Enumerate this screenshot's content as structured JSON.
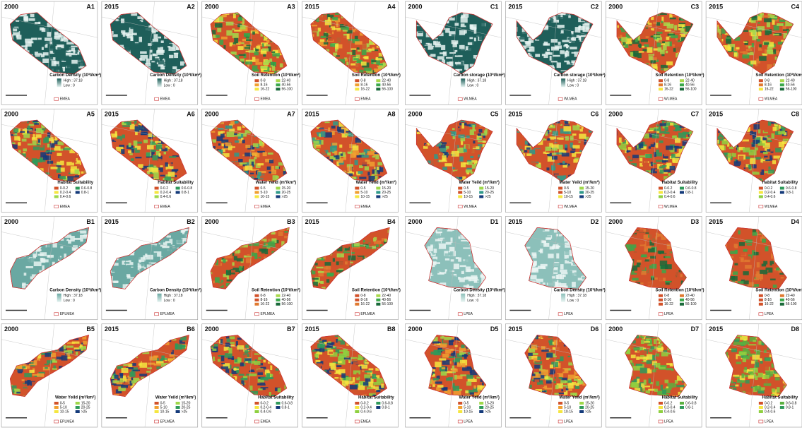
{
  "groups": [
    {
      "region": "EMEA",
      "legend": {
        "title": "Carbon Density (10³t/km²)",
        "high": "High : 37.18",
        "low": "Low : 0",
        "colors": [
          "#1f5f5a",
          "#e6f3f1"
        ]
      },
      "panels": [
        {
          "label": "A1",
          "year": "2000"
        },
        {
          "label": "A2",
          "year": "2015"
        }
      ]
    },
    {
      "region": "EMEA",
      "legend": {
        "title": "Soil Retention (10³t/km²)",
        "items": [
          "0-8",
          "8-16",
          "16-22",
          "22-40",
          "40-56",
          "56-100"
        ],
        "colors": [
          "#d2522a",
          "#f0a030",
          "#f5e640",
          "#a8d84a",
          "#3aa84a",
          "#1a6a3a"
        ]
      },
      "panels": [
        {
          "label": "A3",
          "year": "2000"
        },
        {
          "label": "A4",
          "year": "2015"
        }
      ]
    },
    {
      "region": "WLMEA",
      "legend": {
        "title": "Carbon storage (10³t/km²)",
        "high": "High : 37.18",
        "low": "Low : 0",
        "colors": [
          "#1f5f5a",
          "#e6f3f1"
        ]
      },
      "panels": [
        {
          "label": "C1",
          "year": "2000"
        },
        {
          "label": "C2",
          "year": "2015"
        }
      ]
    },
    {
      "region": "WLMEA",
      "legend": {
        "title": "Soil Retention (10³t/km²)",
        "items": [
          "0-8",
          "8-16",
          "16-22",
          "22-40",
          "40-56",
          "56-100"
        ],
        "colors": [
          "#d2522a",
          "#e07a30",
          "#f5e640",
          "#a8d84a",
          "#3aa84a",
          "#1a6a3a"
        ]
      },
      "panels": [
        {
          "label": "C3",
          "year": "2000"
        },
        {
          "label": "C4",
          "year": "2015"
        }
      ]
    },
    {
      "region": "EMEA",
      "legend": {
        "title": "Habitat Suitability",
        "items": [
          "0-0.2",
          "0.2-0.4",
          "0.4-0.6",
          "0.6-0.8",
          "0.8-1"
        ],
        "colors": [
          "#d2522a",
          "#f5e640",
          "#9fd84a",
          "#2f9a5a",
          "#143a7a"
        ]
      },
      "panels": [
        {
          "label": "A5",
          "year": "2000"
        },
        {
          "label": "A6",
          "year": "2015"
        }
      ]
    },
    {
      "region": "EMEA",
      "legend": {
        "title": "Water Yeild (m³/km²)",
        "items": [
          "0-5",
          "5-10",
          "10-15",
          "15-20",
          "20-25",
          ">25"
        ],
        "colors": [
          "#d2522a",
          "#f0a030",
          "#f5e640",
          "#9fd84a",
          "#2f9a8a",
          "#143a7a"
        ]
      },
      "panels": [
        {
          "label": "A7",
          "year": "2000"
        },
        {
          "label": "A8",
          "year": "2015"
        }
      ]
    },
    {
      "region": "WLMEA",
      "legend": {
        "title": "Water Yeild (m³/km²)",
        "items": [
          "0-5",
          "5-10",
          "10-15",
          "15-20",
          "20-25",
          ">25"
        ],
        "colors": [
          "#d2522a",
          "#d2522a",
          "#f5e640",
          "#9fd84a",
          "#2f9a8a",
          "#143a7a"
        ]
      },
      "panels": [
        {
          "label": "C5",
          "year": "2000"
        },
        {
          "label": "C6",
          "year": "2015"
        }
      ]
    },
    {
      "region": "WLMEA",
      "legend": {
        "title": "Habitat Suitability",
        "items": [
          "0-0.2",
          "0.2-0.4",
          "0.4-0.6",
          "0.6-0.8",
          "0.8-1"
        ],
        "colors": [
          "#d2522a",
          "#f5e640",
          "#8fd040",
          "#2f9a5a",
          "#143a7a"
        ]
      },
      "panels": [
        {
          "label": "C7",
          "year": "2000"
        },
        {
          "label": "C8",
          "year": "2015"
        }
      ]
    },
    {
      "region": "EPLMEA",
      "legend": {
        "title": "Carbon Density (10³t/km²)",
        "high": "High : 37.18",
        "low": "Low : 0",
        "colors": [
          "#6aa8a2",
          "#e6f3f1"
        ]
      },
      "panels": [
        {
          "label": "B1",
          "year": "2000"
        },
        {
          "label": "B2",
          "year": "2015"
        }
      ]
    },
    {
      "region": "EPLMEA",
      "legend": {
        "title": "Soil Retention (10³t/km²)",
        "items": [
          "0-8",
          "8-16",
          "16-22",
          "22-40",
          "40-56",
          "56-100"
        ],
        "colors": [
          "#d2522a",
          "#d2522a",
          "#e07a30",
          "#a8d84a",
          "#3aa84a",
          "#1a6a3a"
        ]
      },
      "panels": [
        {
          "label": "B3",
          "year": "2000"
        },
        {
          "label": "B4",
          "year": "2015"
        }
      ]
    },
    {
      "region": "LPEA",
      "legend": {
        "title": "Carbon Density (10³t/km²)",
        "high": "High : 37.18",
        "low": "Low : 0",
        "colors": [
          "#8cc0ba",
          "#eaf5f3"
        ]
      },
      "panels": [
        {
          "label": "D1",
          "year": "2000"
        },
        {
          "label": "D2",
          "year": "2015"
        }
      ]
    },
    {
      "region": "LPEA",
      "legend": {
        "title": "Soil Retention (10³t/km²)",
        "items": [
          "0-8",
          "8-16",
          "16-22",
          "22-40",
          "40-56",
          "56-100"
        ],
        "colors": [
          "#d2522a",
          "#d2522a",
          "#d2522a",
          "#e07a30",
          "#3aa84a",
          "#1a6a3a"
        ]
      },
      "panels": [
        {
          "label": "D3",
          "year": "2000"
        },
        {
          "label": "D4",
          "year": "2015"
        }
      ]
    },
    {
      "region": "EPLMEA",
      "legend": {
        "title": "Water Yeild (m³/km²)",
        "items": [
          "0-5",
          "5-10",
          "10-15",
          "15-20",
          "20-25",
          ">25"
        ],
        "colors": [
          "#d2522a",
          "#f0a030",
          "#f5e640",
          "#9fd84a",
          "#2f9a5a",
          "#143a7a"
        ]
      },
      "panels": [
        {
          "label": "B5",
          "year": "2000"
        },
        {
          "label": "B6",
          "year": "2015"
        }
      ]
    },
    {
      "region": "EMEA",
      "legend": {
        "title": "Habitat Suitability",
        "items": [
          "0-0.2",
          "0.2-0.4",
          "0.4-0.6",
          "0.6-0.8",
          "0.8-1"
        ],
        "colors": [
          "#d2522a",
          "#f5e640",
          "#8fd040",
          "#2f9a5a",
          "#143a7a"
        ]
      },
      "panels": [
        {
          "label": "B7",
          "year": "2000"
        },
        {
          "label": "B8",
          "year": "2015"
        }
      ]
    },
    {
      "region": "LPEA",
      "legend": {
        "title": "Water Yeild (m³/km²)",
        "items": [
          "0-5",
          "5-10",
          "10-15",
          "15-20",
          "20-25",
          ">25"
        ],
        "colors": [
          "#d2522a",
          "#f0a030",
          "#f5e640",
          "#9fd84a",
          "#2f9a5a",
          "#143a7a"
        ]
      },
      "panels": [
        {
          "label": "D5",
          "year": "2000"
        },
        {
          "label": "D6",
          "year": "2015"
        }
      ]
    },
    {
      "region": "LPEA",
      "legend": {
        "title": "Habitat Suitability",
        "items": [
          "0-0.2",
          "0.2-0.4",
          "0.4-0.6",
          "0.6-0.8",
          "0.8-1"
        ],
        "colors": [
          "#d2522a",
          "#f5e640",
          "#8fd040",
          "#5ab040",
          "#2f9a5a"
        ]
      },
      "panels": [
        {
          "label": "D7",
          "year": "2000"
        },
        {
          "label": "D8",
          "year": "2015"
        }
      ]
    }
  ]
}
